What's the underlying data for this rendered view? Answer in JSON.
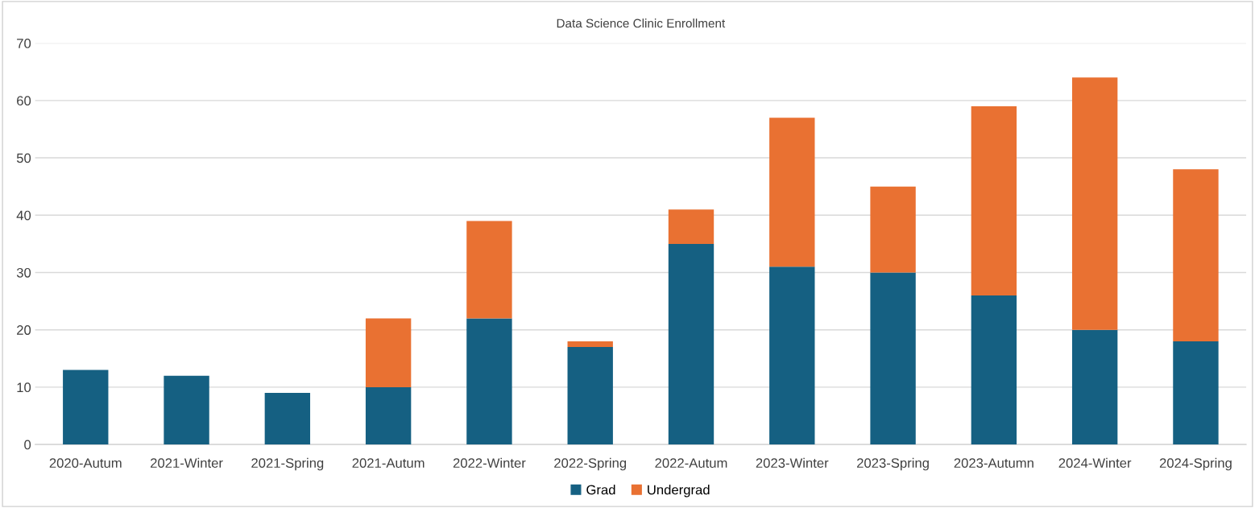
{
  "chart_data": {
    "type": "bar",
    "title": "Data Science Clinic Enrollment",
    "stacked": true,
    "categories": [
      "2020-Autum",
      "2021-Winter",
      "2021-Spring",
      "2021-Autum",
      "2022-Winter",
      "2022-Spring",
      "2022-Autum",
      "2023-Winter",
      "2023-Spring",
      "2023-Autumn",
      "2024-Winter",
      "2024-Spring"
    ],
    "series": [
      {
        "name": "Grad",
        "color": "#156082",
        "values": [
          13,
          12,
          9,
          10,
          22,
          17,
          35,
          31,
          30,
          26,
          20,
          18
        ]
      },
      {
        "name": "Undergrad",
        "color": "#e97132",
        "values": [
          null,
          null,
          null,
          12,
          17,
          1,
          6,
          26,
          15,
          33,
          44,
          30
        ]
      }
    ],
    "ylim": [
      0,
      70
    ],
    "yticks": [
      0,
      10,
      20,
      30,
      40,
      50,
      60,
      70
    ],
    "grid": "y",
    "legend": "bottom"
  }
}
